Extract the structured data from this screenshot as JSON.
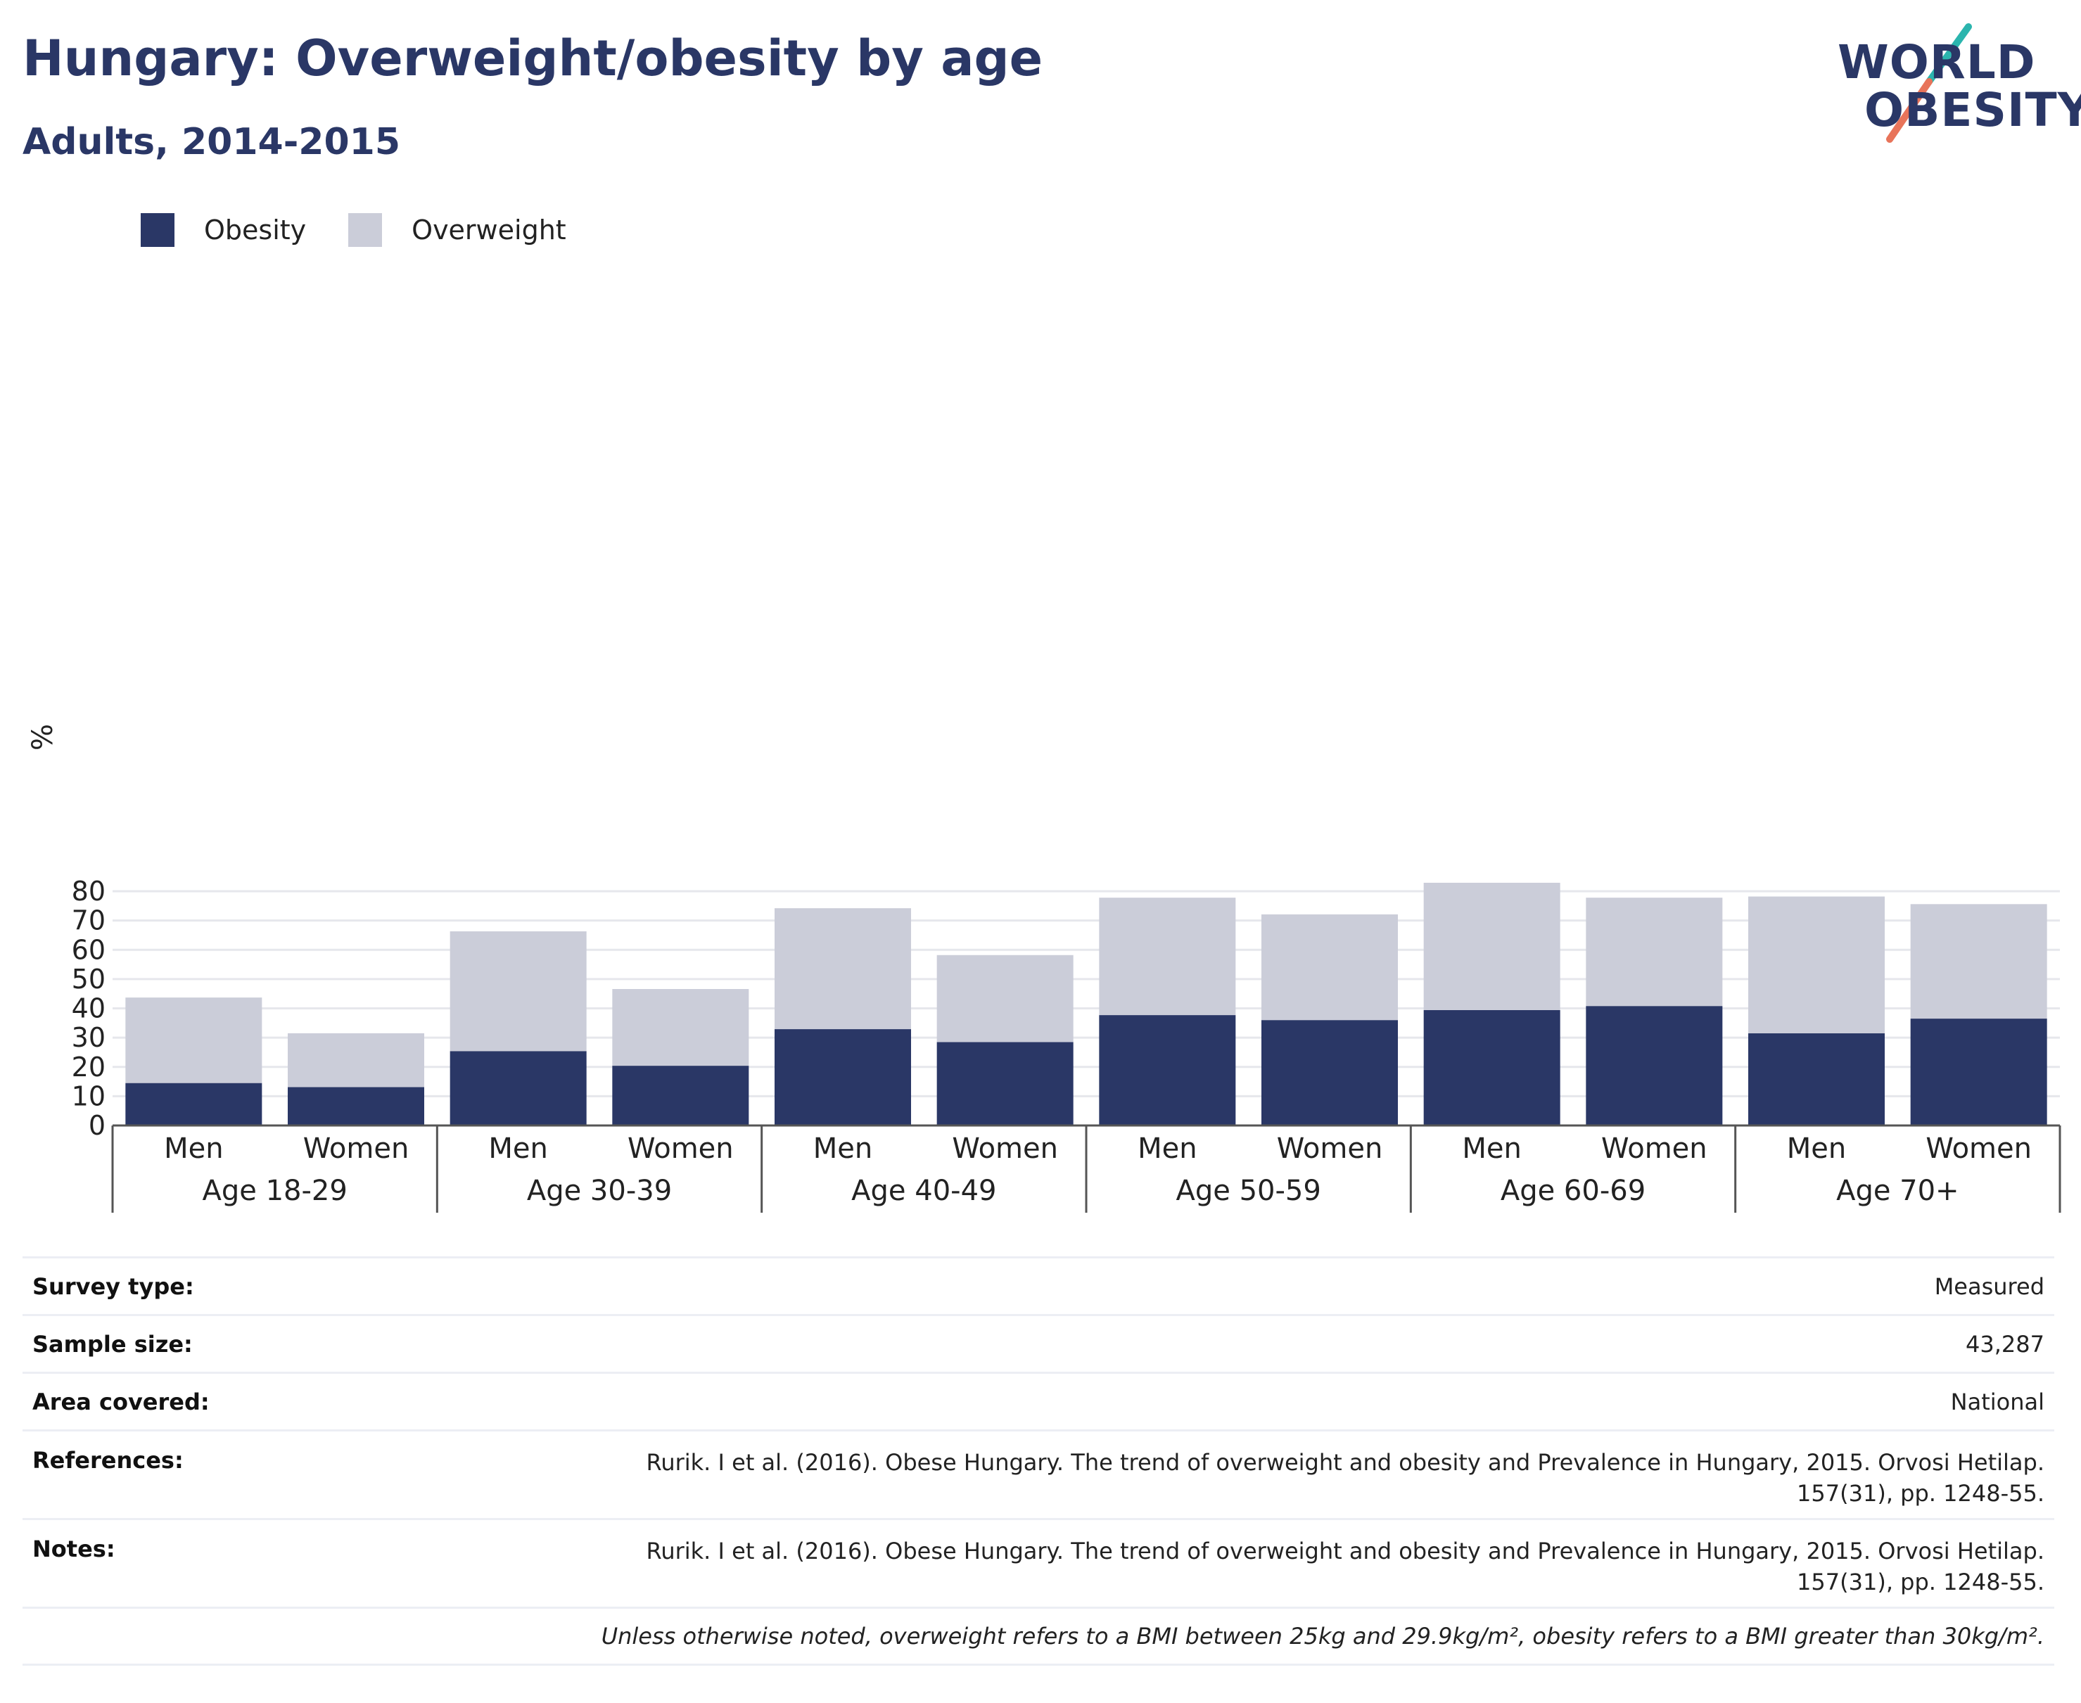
{
  "header": {
    "title": "Hungary: Overweight/obesity by age",
    "subtitle": "Adults, 2014-2015"
  },
  "logo": {
    "line1": "WORLD",
    "line2": "OBESITY",
    "colors": {
      "text": "#2a3766",
      "slash_top": "#2bb5ae",
      "slash_bottom": "#e8745a"
    }
  },
  "colors": {
    "obesity": "#2a3766",
    "overweight": "#cbcdd9",
    "grid": "#e6e7ec",
    "axis": "#555555"
  },
  "chart_data": {
    "type": "bar",
    "stacked": true,
    "ylabel": "%",
    "ylim": [
      0,
      85
    ],
    "yticks": [
      0,
      10,
      20,
      30,
      40,
      50,
      60,
      70,
      80
    ],
    "grid": true,
    "legend_position": "top-left",
    "groups": [
      "Age 18-29",
      "Age 30-39",
      "Age 40-49",
      "Age 50-59",
      "Age 60-69",
      "Age 70+"
    ],
    "categories": [
      "Men",
      "Women",
      "Men",
      "Women",
      "Men",
      "Women",
      "Men",
      "Women",
      "Men",
      "Women",
      "Men",
      "Women"
    ],
    "series": [
      {
        "name": "Obesity",
        "color": "#2a3766",
        "values": [
          14.5,
          13.1,
          25.4,
          20.4,
          32.9,
          28.5,
          37.7,
          36.0,
          39.4,
          40.8,
          31.5,
          36.5
        ]
      },
      {
        "name": "Overweight",
        "color": "#cbcdd9",
        "values": [
          29.2,
          18.4,
          40.9,
          26.2,
          41.3,
          29.7,
          40.1,
          36.1,
          43.5,
          37.0,
          46.7,
          39.1
        ]
      }
    ],
    "totals": [
      43.7,
      31.5,
      66.3,
      46.6,
      74.2,
      58.2,
      77.8,
      72.1,
      82.9,
      77.8,
      78.2,
      75.6
    ]
  },
  "info": [
    {
      "label": "Survey type:",
      "value": "Measured"
    },
    {
      "label": "Sample size:",
      "value": "43,287"
    },
    {
      "label": "Area covered:",
      "value": "National"
    },
    {
      "label": "References:",
      "value": "Rurik. I et al. (2016). Obese Hungary. The trend of overweight and obesity and Prevalence in Hungary, 2015. Orvosi Hetilap. 157(31), pp. 1248-55."
    },
    {
      "label": "Notes:",
      "value": "Rurik. I et al. (2016). Obese Hungary. The trend of overweight and obesity and Prevalence in Hungary, 2015. Orvosi Hetilap. 157(31), pp. 1248-55."
    }
  ],
  "footnote": "Unless otherwise noted, overweight refers to a BMI between 25kg and 29.9kg/m², obesity refers to a BMI greater than 30kg/m²."
}
